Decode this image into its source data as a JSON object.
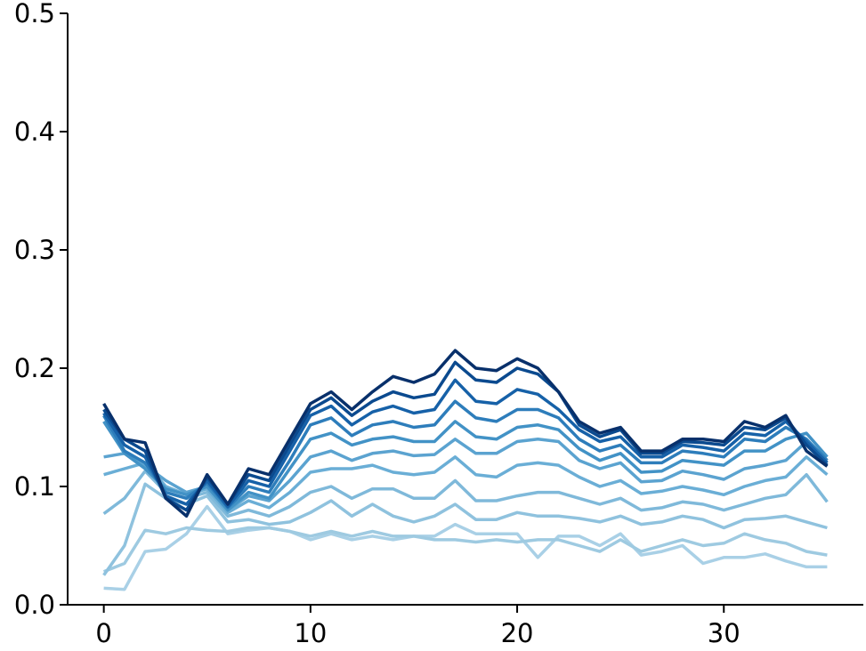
{
  "chart_data": {
    "type": "line",
    "x": [
      0,
      1,
      2,
      3,
      4,
      5,
      6,
      7,
      8,
      9,
      10,
      11,
      12,
      13,
      14,
      15,
      16,
      17,
      18,
      19,
      20,
      21,
      22,
      23,
      24,
      25,
      26,
      27,
      28,
      29,
      30,
      31,
      32,
      33,
      34,
      35
    ],
    "xlim": [
      -1.75,
      36.75
    ],
    "xticks": [
      0,
      10,
      20,
      30
    ],
    "ylim": [
      0,
      0.5
    ],
    "yticks": [
      {
        "value": 0,
        "label": "0.0"
      },
      0.1,
      0.2,
      0.3,
      0.4,
      0.5
    ],
    "series": [
      {
        "color": "#a9d0e6",
        "values": [
          0.014,
          0.013,
          0.045,
          0.047,
          0.06,
          0.083,
          0.06,
          0.063,
          0.065,
          0.062,
          0.055,
          0.06,
          0.055,
          0.058,
          0.055,
          0.058,
          0.058,
          0.068,
          0.06,
          0.06,
          0.06,
          0.04,
          0.058,
          0.058,
          0.05,
          0.06,
          0.042,
          0.045,
          0.05,
          0.035,
          0.04,
          0.04,
          0.043,
          0.037,
          0.032,
          0.032
        ]
      },
      {
        "color": "#9ecae1",
        "values": [
          0.028,
          0.035,
          0.063,
          0.06,
          0.065,
          0.063,
          0.062,
          0.065,
          0.065,
          0.062,
          0.058,
          0.062,
          0.058,
          0.062,
          0.058,
          0.058,
          0.055,
          0.055,
          0.053,
          0.055,
          0.053,
          0.055,
          0.055,
          0.05,
          0.045,
          0.055,
          0.045,
          0.05,
          0.055,
          0.05,
          0.052,
          0.06,
          0.055,
          0.052,
          0.045,
          0.042
        ]
      },
      {
        "color": "#8fc2de",
        "values": [
          0.025,
          0.05,
          0.102,
          0.09,
          0.085,
          0.092,
          0.07,
          0.072,
          0.068,
          0.07,
          0.078,
          0.088,
          0.075,
          0.085,
          0.075,
          0.07,
          0.075,
          0.085,
          0.072,
          0.072,
          0.078,
          0.075,
          0.075,
          0.073,
          0.07,
          0.075,
          0.068,
          0.07,
          0.075,
          0.072,
          0.065,
          0.072,
          0.073,
          0.075,
          0.07,
          0.065
        ]
      },
      {
        "color": "#7fb9da",
        "values": [
          0.077,
          0.09,
          0.113,
          0.095,
          0.09,
          0.095,
          0.075,
          0.08,
          0.075,
          0.083,
          0.095,
          0.1,
          0.09,
          0.098,
          0.098,
          0.09,
          0.09,
          0.105,
          0.088,
          0.088,
          0.092,
          0.095,
          0.095,
          0.09,
          0.085,
          0.09,
          0.08,
          0.082,
          0.087,
          0.085,
          0.08,
          0.085,
          0.09,
          0.093,
          0.11,
          0.087
        ]
      },
      {
        "color": "#6aaed6",
        "values": [
          0.11,
          0.115,
          0.12,
          0.1,
          0.093,
          0.098,
          0.078,
          0.088,
          0.082,
          0.095,
          0.112,
          0.115,
          0.115,
          0.118,
          0.112,
          0.11,
          0.112,
          0.125,
          0.11,
          0.108,
          0.118,
          0.12,
          0.118,
          0.108,
          0.1,
          0.105,
          0.094,
          0.096,
          0.1,
          0.097,
          0.093,
          0.1,
          0.105,
          0.108,
          0.125,
          0.11
        ]
      },
      {
        "color": "#5ba3d0",
        "values": [
          0.125,
          0.128,
          0.118,
          0.105,
          0.095,
          0.1,
          0.08,
          0.092,
          0.088,
          0.105,
          0.125,
          0.13,
          0.122,
          0.128,
          0.13,
          0.126,
          0.127,
          0.14,
          0.128,
          0.128,
          0.138,
          0.14,
          0.138,
          0.122,
          0.115,
          0.12,
          0.104,
          0.105,
          0.113,
          0.11,
          0.106,
          0.115,
          0.118,
          0.122,
          0.138,
          0.12
        ]
      },
      {
        "color": "#4292c6",
        "values": [
          0.155,
          0.128,
          0.115,
          0.098,
          0.093,
          0.1,
          0.08,
          0.095,
          0.09,
          0.115,
          0.14,
          0.145,
          0.135,
          0.14,
          0.142,
          0.138,
          0.138,
          0.155,
          0.142,
          0.14,
          0.15,
          0.152,
          0.148,
          0.132,
          0.122,
          0.128,
          0.112,
          0.113,
          0.122,
          0.12,
          0.118,
          0.13,
          0.13,
          0.14,
          0.145,
          0.125
        ]
      },
      {
        "color": "#2d7dbb",
        "values": [
          0.16,
          0.13,
          0.12,
          0.095,
          0.09,
          0.103,
          0.082,
          0.1,
          0.095,
          0.122,
          0.152,
          0.158,
          0.143,
          0.152,
          0.155,
          0.15,
          0.152,
          0.172,
          0.158,
          0.155,
          0.165,
          0.165,
          0.158,
          0.14,
          0.13,
          0.135,
          0.12,
          0.12,
          0.13,
          0.128,
          0.125,
          0.14,
          0.138,
          0.15,
          0.14,
          0.122
        ]
      },
      {
        "color": "#1661a8",
        "values": [
          0.162,
          0.135,
          0.125,
          0.092,
          0.085,
          0.105,
          0.083,
          0.105,
          0.1,
          0.13,
          0.16,
          0.168,
          0.152,
          0.163,
          0.168,
          0.162,
          0.165,
          0.19,
          0.172,
          0.17,
          0.182,
          0.178,
          0.165,
          0.148,
          0.138,
          0.142,
          0.125,
          0.125,
          0.135,
          0.133,
          0.13,
          0.145,
          0.143,
          0.155,
          0.138,
          0.12
        ]
      },
      {
        "color": "#0b4a8f",
        "values": [
          0.165,
          0.14,
          0.13,
          0.09,
          0.08,
          0.108,
          0.085,
          0.11,
          0.105,
          0.135,
          0.165,
          0.175,
          0.16,
          0.172,
          0.18,
          0.175,
          0.178,
          0.205,
          0.19,
          0.188,
          0.2,
          0.195,
          0.18,
          0.152,
          0.142,
          0.148,
          0.128,
          0.128,
          0.138,
          0.137,
          0.135,
          0.15,
          0.148,
          0.158,
          0.135,
          0.118
        ]
      },
      {
        "color": "#08306b",
        "values": [
          0.17,
          0.14,
          0.137,
          0.09,
          0.075,
          0.11,
          0.085,
          0.115,
          0.11,
          0.14,
          0.17,
          0.18,
          0.165,
          0.18,
          0.193,
          0.188,
          0.195,
          0.215,
          0.2,
          0.198,
          0.208,
          0.2,
          0.18,
          0.155,
          0.145,
          0.15,
          0.13,
          0.13,
          0.14,
          0.14,
          0.138,
          0.155,
          0.15,
          0.16,
          0.13,
          0.117
        ]
      }
    ]
  }
}
